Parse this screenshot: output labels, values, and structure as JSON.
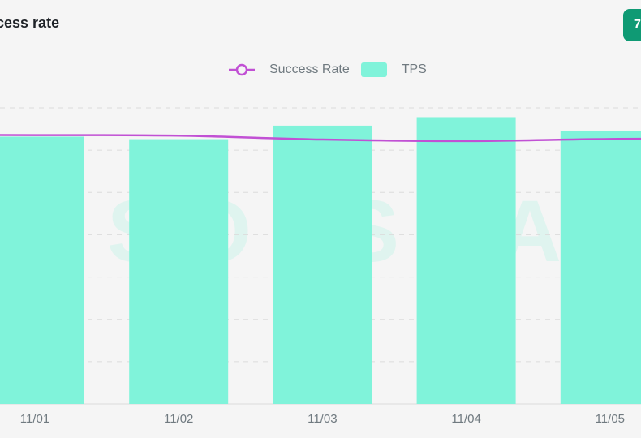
{
  "header": {
    "title": "Success rate",
    "badge": "7"
  },
  "watermark": "SOLSCAN",
  "colors": {
    "bar": "#80f3da",
    "line": "#c150d4",
    "badge": "#0f9a74",
    "grid": "#dcdcdc"
  },
  "chart_data": {
    "type": "bar",
    "categories": [
      "11/01",
      "11/02",
      "11/03",
      "11/04",
      "11/05"
    ],
    "series": [
      {
        "name": "TPS",
        "type": "bar",
        "values": [
          3160,
          3130,
          3290,
          3390,
          3230
        ]
      },
      {
        "name": "Success Rate",
        "type": "line",
        "smooth": true,
        "values": [
          90.8,
          90.6,
          89.3,
          88.8,
          89.5
        ]
      }
    ],
    "legend": [
      "Success Rate",
      "TPS"
    ],
    "legend_position": "top-center",
    "grid": true,
    "ylim_left": [
      0,
      3500
    ],
    "ylim_right": [
      0,
      100
    ]
  }
}
